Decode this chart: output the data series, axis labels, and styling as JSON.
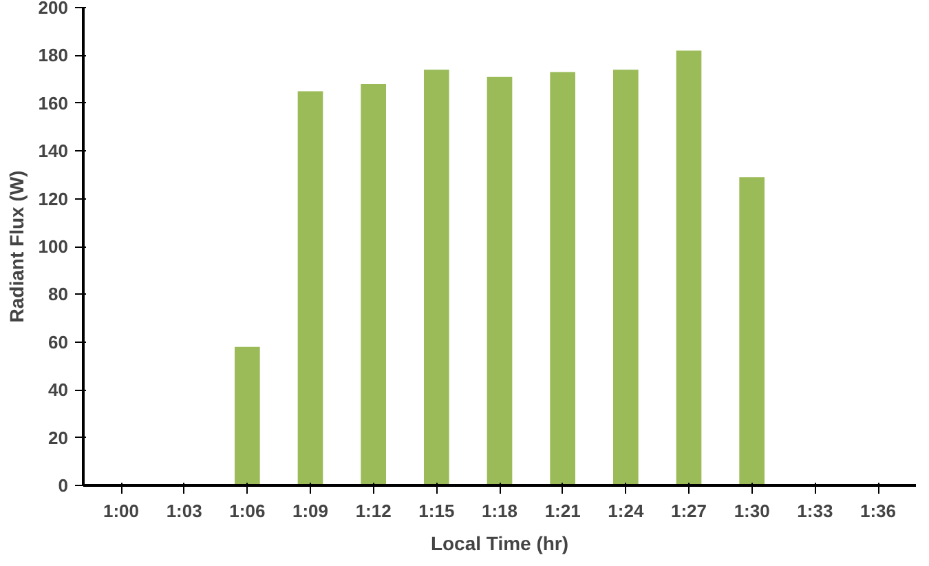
{
  "chart_data": {
    "type": "bar",
    "xlabel": "Local Time (hr)",
    "ylabel": "Radiant Flux (W)",
    "categories": [
      "1:00",
      "1:03",
      "1:06",
      "1:09",
      "1:12",
      "1:15",
      "1:18",
      "1:21",
      "1:24",
      "1:27",
      "1:30",
      "1:33",
      "1:36"
    ],
    "values": [
      0,
      0,
      58,
      165,
      168,
      174,
      171,
      173,
      174,
      182,
      129,
      0,
      0
    ],
    "color": "#9bbb59",
    "ylim": [
      0,
      200
    ],
    "yticks": [
      0,
      20,
      40,
      60,
      80,
      100,
      120,
      140,
      160,
      180,
      200
    ],
    "grid": false
  }
}
